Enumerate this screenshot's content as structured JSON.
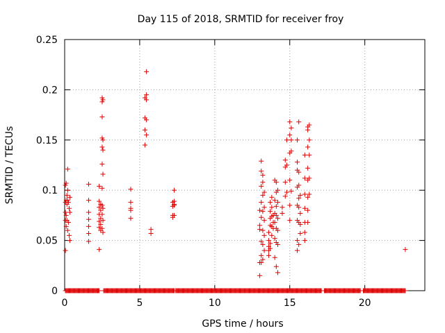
{
  "chart_data": {
    "type": "scatter",
    "title": "Day 115 of 2018, SRMTID for receiver froy",
    "xlabel": "GPS time / hours",
    "ylabel": "SRMTID / TECUs",
    "xlim": [
      0,
      24
    ],
    "ylim": [
      0,
      0.25
    ],
    "xticks": [
      0,
      5,
      10,
      15,
      20
    ],
    "yticks": [
      0,
      0.05,
      0.1,
      0.15,
      0.2,
      0.25
    ],
    "ytick_labels": [
      "0",
      "0.05",
      "0.1",
      "0.15",
      "0.2",
      "0.25"
    ],
    "grid": true,
    "marker": "plus",
    "color": "#dd0000",
    "series": [
      {
        "name": "SRMTID",
        "points": [
          [
            0.05,
            0.105
          ],
          [
            0.05,
            0.088
          ],
          [
            0.05,
            0.078
          ],
          [
            0.05,
            0.07
          ],
          [
            0.05,
            0.04
          ],
          [
            0.1,
            0.107
          ],
          [
            0.1,
            0.09
          ],
          [
            0.1,
            0.075
          ],
          [
            0.1,
            0.064
          ],
          [
            0.15,
            0.095
          ],
          [
            0.15,
            0.086
          ],
          [
            0.15,
            0.07
          ],
          [
            0.2,
            0.121
          ],
          [
            0.2,
            0.1
          ],
          [
            0.2,
            0.09
          ],
          [
            0.2,
            0.06
          ],
          [
            0.25,
            0.088
          ],
          [
            0.25,
            0.068
          ],
          [
            0.3,
            0.082
          ],
          [
            0.3,
            0.055
          ],
          [
            0.35,
            0.093
          ],
          [
            0.35,
            0.078
          ],
          [
            0.35,
            0.05
          ],
          [
            1.6,
            0.106
          ],
          [
            1.6,
            0.09
          ],
          [
            1.6,
            0.078
          ],
          [
            1.6,
            0.071
          ],
          [
            1.6,
            0.064
          ],
          [
            1.6,
            0.057
          ],
          [
            1.6,
            0.049
          ],
          [
            2.3,
            0.104
          ],
          [
            2.3,
            0.089
          ],
          [
            2.3,
            0.083
          ],
          [
            2.3,
            0.076
          ],
          [
            2.3,
            0.069
          ],
          [
            2.3,
            0.063
          ],
          [
            2.3,
            0.041
          ],
          [
            2.4,
            0.086
          ],
          [
            2.4,
            0.08
          ],
          [
            2.4,
            0.072
          ],
          [
            2.4,
            0.066
          ],
          [
            2.4,
            0.06
          ],
          [
            2.5,
            0.192
          ],
          [
            2.5,
            0.188
          ],
          [
            2.5,
            0.173
          ],
          [
            2.5,
            0.152
          ],
          [
            2.5,
            0.143
          ],
          [
            2.5,
            0.126
          ],
          [
            2.5,
            0.102
          ],
          [
            2.5,
            0.085
          ],
          [
            2.5,
            0.076
          ],
          [
            2.5,
            0.062
          ],
          [
            2.55,
            0.19
          ],
          [
            2.55,
            0.15
          ],
          [
            2.55,
            0.14
          ],
          [
            2.55,
            0.116
          ],
          [
            2.55,
            0.082
          ],
          [
            2.55,
            0.07
          ],
          [
            2.55,
            0.058
          ],
          [
            4.4,
            0.101
          ],
          [
            4.4,
            0.088
          ],
          [
            4.4,
            0.082
          ],
          [
            4.4,
            0.08
          ],
          [
            4.4,
            0.072
          ],
          [
            5.35,
            0.192
          ],
          [
            5.35,
            0.172
          ],
          [
            5.35,
            0.16
          ],
          [
            5.35,
            0.145
          ],
          [
            5.45,
            0.218
          ],
          [
            5.45,
            0.195
          ],
          [
            5.45,
            0.19
          ],
          [
            5.45,
            0.17
          ],
          [
            5.45,
            0.155
          ],
          [
            5.75,
            0.061
          ],
          [
            5.75,
            0.057
          ],
          [
            7.2,
            0.088
          ],
          [
            7.2,
            0.084
          ],
          [
            7.2,
            0.075
          ],
          [
            7.2,
            0.073
          ],
          [
            7.3,
            0.1
          ],
          [
            7.3,
            0.089
          ],
          [
            7.3,
            0.086
          ],
          [
            7.3,
            0.085
          ],
          [
            7.3,
            0.075
          ],
          [
            13.0,
            0.08
          ],
          [
            13.0,
            0.065
          ],
          [
            13.0,
            0.061
          ],
          [
            13.0,
            0.028
          ],
          [
            13.0,
            0.015
          ],
          [
            13.1,
            0.129
          ],
          [
            13.1,
            0.119
          ],
          [
            13.1,
            0.104
          ],
          [
            13.1,
            0.088
          ],
          [
            13.1,
            0.073
          ],
          [
            13.1,
            0.049
          ],
          [
            13.1,
            0.035
          ],
          [
            13.1,
            0.028
          ],
          [
            13.2,
            0.115
          ],
          [
            13.2,
            0.108
          ],
          [
            13.2,
            0.095
          ],
          [
            13.2,
            0.079
          ],
          [
            13.2,
            0.06
          ],
          [
            13.2,
            0.046
          ],
          [
            13.2,
            0.031
          ],
          [
            13.3,
            0.098
          ],
          [
            13.3,
            0.083
          ],
          [
            13.3,
            0.07
          ],
          [
            13.3,
            0.055
          ],
          [
            13.3,
            0.04
          ],
          [
            13.6,
            0.058
          ],
          [
            13.6,
            0.05
          ],
          [
            13.6,
            0.044
          ],
          [
            13.6,
            0.04
          ],
          [
            13.6,
            0.035
          ],
          [
            13.7,
            0.088
          ],
          [
            13.7,
            0.079
          ],
          [
            13.7,
            0.072
          ],
          [
            13.7,
            0.065
          ],
          [
            13.7,
            0.047
          ],
          [
            13.7,
            0.042
          ],
          [
            13.8,
            0.093
          ],
          [
            13.8,
            0.083
          ],
          [
            13.8,
            0.074
          ],
          [
            13.8,
            0.064
          ],
          [
            13.8,
            0.055
          ],
          [
            13.9,
            0.075
          ],
          [
            13.9,
            0.068
          ],
          [
            13.9,
            0.062
          ],
          [
            14.0,
            0.11
          ],
          [
            14.0,
            0.09
          ],
          [
            14.0,
            0.077
          ],
          [
            14.0,
            0.068
          ],
          [
            14.0,
            0.052
          ],
          [
            14.0,
            0.033
          ],
          [
            14.1,
            0.108
          ],
          [
            14.1,
            0.098
          ],
          [
            14.1,
            0.084
          ],
          [
            14.1,
            0.075
          ],
          [
            14.1,
            0.062
          ],
          [
            14.1,
            0.048
          ],
          [
            14.1,
            0.024
          ],
          [
            14.2,
            0.1
          ],
          [
            14.2,
            0.088
          ],
          [
            14.2,
            0.072
          ],
          [
            14.2,
            0.06
          ],
          [
            14.2,
            0.046
          ],
          [
            14.2,
            0.018
          ],
          [
            14.5,
            0.083
          ],
          [
            14.5,
            0.077
          ],
          [
            14.7,
            0.13
          ],
          [
            14.7,
            0.123
          ],
          [
            14.7,
            0.108
          ],
          [
            14.7,
            0.094
          ],
          [
            14.8,
            0.15
          ],
          [
            14.8,
            0.125
          ],
          [
            14.8,
            0.098
          ],
          [
            15.0,
            0.168
          ],
          [
            15.0,
            0.155
          ],
          [
            15.0,
            0.137
          ],
          [
            15.0,
            0.11
          ],
          [
            15.0,
            0.085
          ],
          [
            15.0,
            0.07
          ],
          [
            15.1,
            0.162
          ],
          [
            15.1,
            0.15
          ],
          [
            15.1,
            0.139
          ],
          [
            15.1,
            0.099
          ],
          [
            15.5,
            0.15
          ],
          [
            15.5,
            0.128
          ],
          [
            15.5,
            0.12
          ],
          [
            15.5,
            0.103
          ],
          [
            15.5,
            0.085
          ],
          [
            15.5,
            0.07
          ],
          [
            15.5,
            0.05
          ],
          [
            15.5,
            0.04
          ],
          [
            15.6,
            0.168
          ],
          [
            15.6,
            0.118
          ],
          [
            15.6,
            0.105
          ],
          [
            15.6,
            0.092
          ],
          [
            15.6,
            0.083
          ],
          [
            15.6,
            0.068
          ],
          [
            15.6,
            0.046
          ],
          [
            15.7,
            0.095
          ],
          [
            15.7,
            0.077
          ],
          [
            15.7,
            0.066
          ],
          [
            15.7,
            0.057
          ],
          [
            16.0,
            0.135
          ],
          [
            16.0,
            0.112
          ],
          [
            16.0,
            0.096
          ],
          [
            16.0,
            0.082
          ],
          [
            16.0,
            0.068
          ],
          [
            16.0,
            0.058
          ],
          [
            16.0,
            0.05
          ],
          [
            16.2,
            0.163
          ],
          [
            16.2,
            0.16
          ],
          [
            16.2,
            0.143
          ],
          [
            16.2,
            0.122
          ],
          [
            16.2,
            0.11
          ],
          [
            16.2,
            0.093
          ],
          [
            16.2,
            0.08
          ],
          [
            16.2,
            0.068
          ],
          [
            16.3,
            0.165
          ],
          [
            16.3,
            0.15
          ],
          [
            16.3,
            0.135
          ],
          [
            16.3,
            0.112
          ],
          [
            16.3,
            0.096
          ],
          [
            22.7,
            0.041
          ]
        ],
        "zero_runs": [
          [
            0.05,
            2.3
          ],
          [
            2.6,
            7.3
          ],
          [
            7.4,
            17.1
          ],
          [
            17.3,
            19.7
          ],
          [
            19.9,
            22.7
          ]
        ]
      }
    ]
  }
}
